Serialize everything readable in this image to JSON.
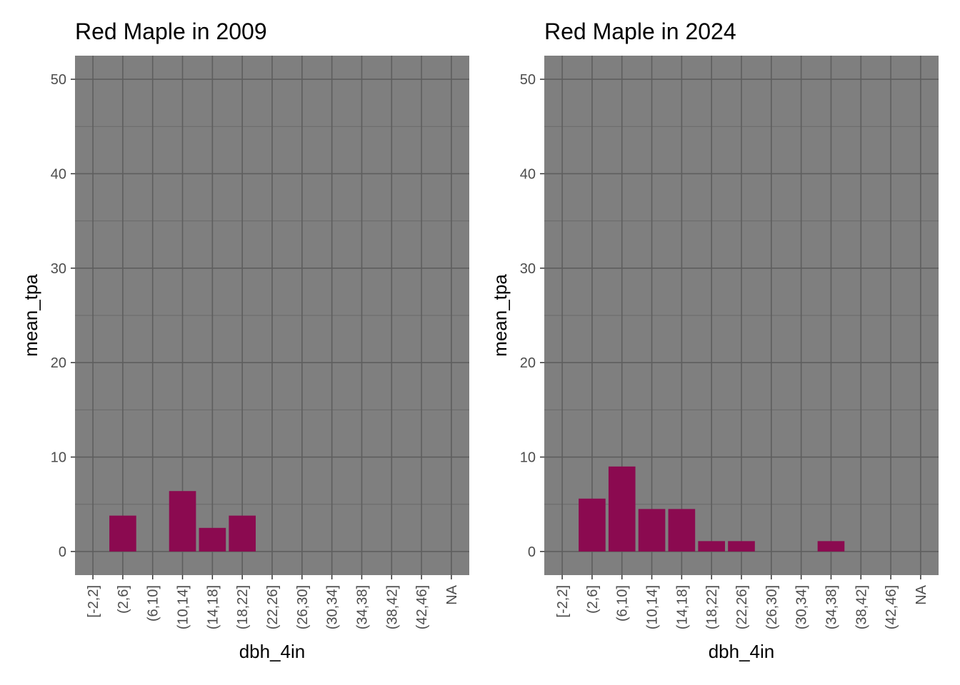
{
  "chart_data": [
    {
      "type": "bar",
      "title": "Red Maple in 2009",
      "xlabel": "dbh_4in",
      "ylabel": "mean_tpa",
      "categories": [
        "[-2,2]",
        "(2,6]",
        "(6,10]",
        "(10,14]",
        "(14,18]",
        "(18,22]",
        "(22,26]",
        "(26,30]",
        "(30,34]",
        "(34,38]",
        "(38,42]",
        "(42,46]",
        "NA"
      ],
      "values": [
        0,
        3.8,
        0,
        6.4,
        2.5,
        3.8,
        0,
        0,
        0,
        0,
        0,
        0,
        0
      ],
      "ylim": [
        -2.5,
        52.5
      ],
      "yticks": [
        0,
        10,
        20,
        30,
        40,
        50
      ],
      "bar_color": "#8B0A50",
      "panel_color": "#7F7F7F",
      "grid": true
    },
    {
      "type": "bar",
      "title": "Red Maple in 2024",
      "xlabel": "dbh_4in",
      "ylabel": "mean_tpa",
      "categories": [
        "[-2,2]",
        "(2,6]",
        "(6,10]",
        "(10,14]",
        "(14,18]",
        "(18,22]",
        "(22,26]",
        "(26,30]",
        "(30,34]",
        "(34,38]",
        "(38,42]",
        "(42,46]",
        "NA"
      ],
      "values": [
        0,
        5.6,
        9.0,
        4.5,
        4.5,
        1.1,
        1.1,
        0,
        0,
        1.1,
        0,
        0,
        0
      ],
      "ylim": [
        -2.5,
        52.5
      ],
      "yticks": [
        0,
        10,
        20,
        30,
        40,
        50
      ],
      "bar_color": "#8B0A50",
      "panel_color": "#7F7F7F",
      "grid": true
    }
  ]
}
